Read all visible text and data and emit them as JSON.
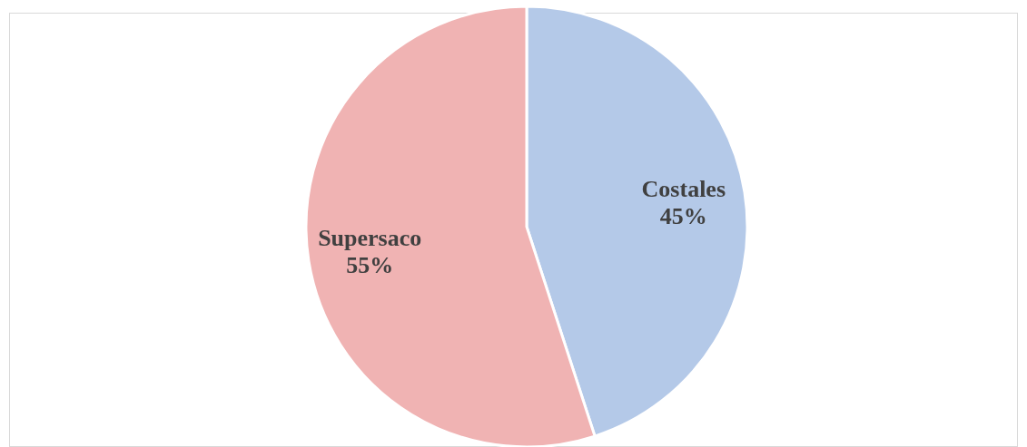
{
  "chart_data": {
    "type": "pie",
    "categories": [
      "Costales",
      "Supersaco"
    ],
    "values": [
      45,
      55
    ],
    "value_labels": [
      "45%",
      "55%"
    ],
    "colors": [
      "#b4c9e8",
      "#f0b3b3"
    ],
    "legend": false
  }
}
